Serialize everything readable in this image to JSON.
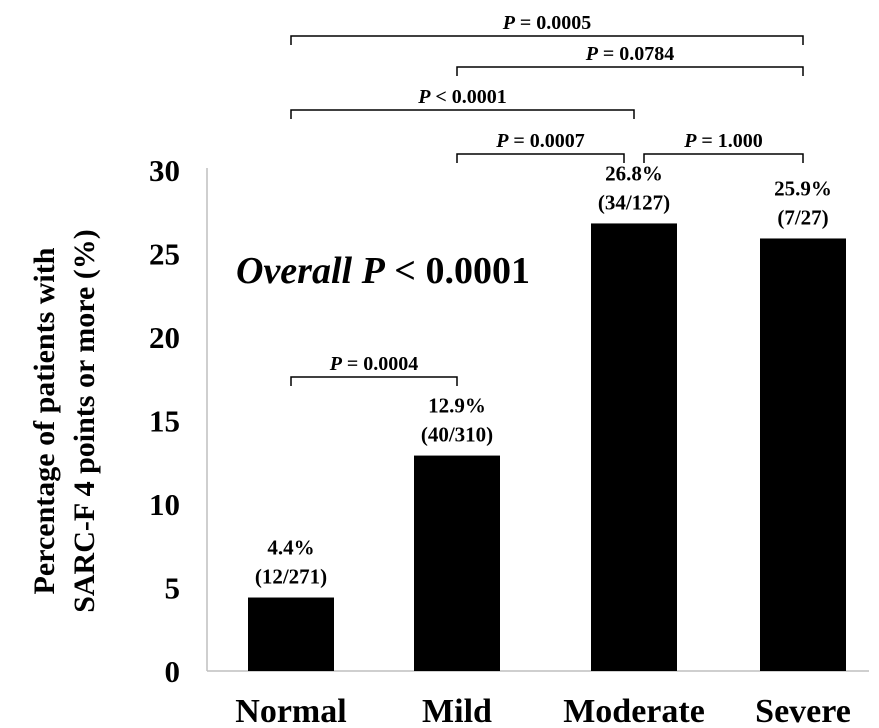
{
  "chart_data": {
    "type": "bar",
    "categories": [
      "Normal",
      "Mild",
      "Moderate",
      "Severe"
    ],
    "values": [
      4.4,
      12.9,
      26.8,
      25.9
    ],
    "bar_labels": [
      [
        "4.4%",
        "(12/271)"
      ],
      [
        "12.9%",
        "(40/310)"
      ],
      [
        "26.8%",
        "(34/127)"
      ],
      [
        "25.9%",
        "(7/27)"
      ]
    ],
    "ylabel_lines": [
      "Percentage of patients with",
      "SARC-F 4 points or more (%)"
    ],
    "yticks": [
      0,
      5,
      10,
      15,
      20,
      25,
      30
    ],
    "ylim": [
      0,
      30
    ],
    "bar_color": "#000000",
    "overall_annotation": {
      "prefix": "Overall ",
      "p": "P",
      "rest": " < 0.0001"
    },
    "comparisons": [
      {
        "from": 0,
        "to": 3,
        "p": "P",
        "text": " = 0.0005"
      },
      {
        "from": 1,
        "to": 3,
        "p": "P",
        "text": " = 0.0784"
      },
      {
        "from": 0,
        "to": 2,
        "p": "P",
        "text": " < 0.0001"
      },
      {
        "from": 1,
        "to": 2,
        "p": "P",
        "text": " = 0.0007"
      },
      {
        "from": 2,
        "to": 3,
        "p": "P",
        "text": " = 1.000"
      },
      {
        "from": 0,
        "to": 1,
        "p": "P",
        "text": " = 0.0004"
      }
    ]
  }
}
